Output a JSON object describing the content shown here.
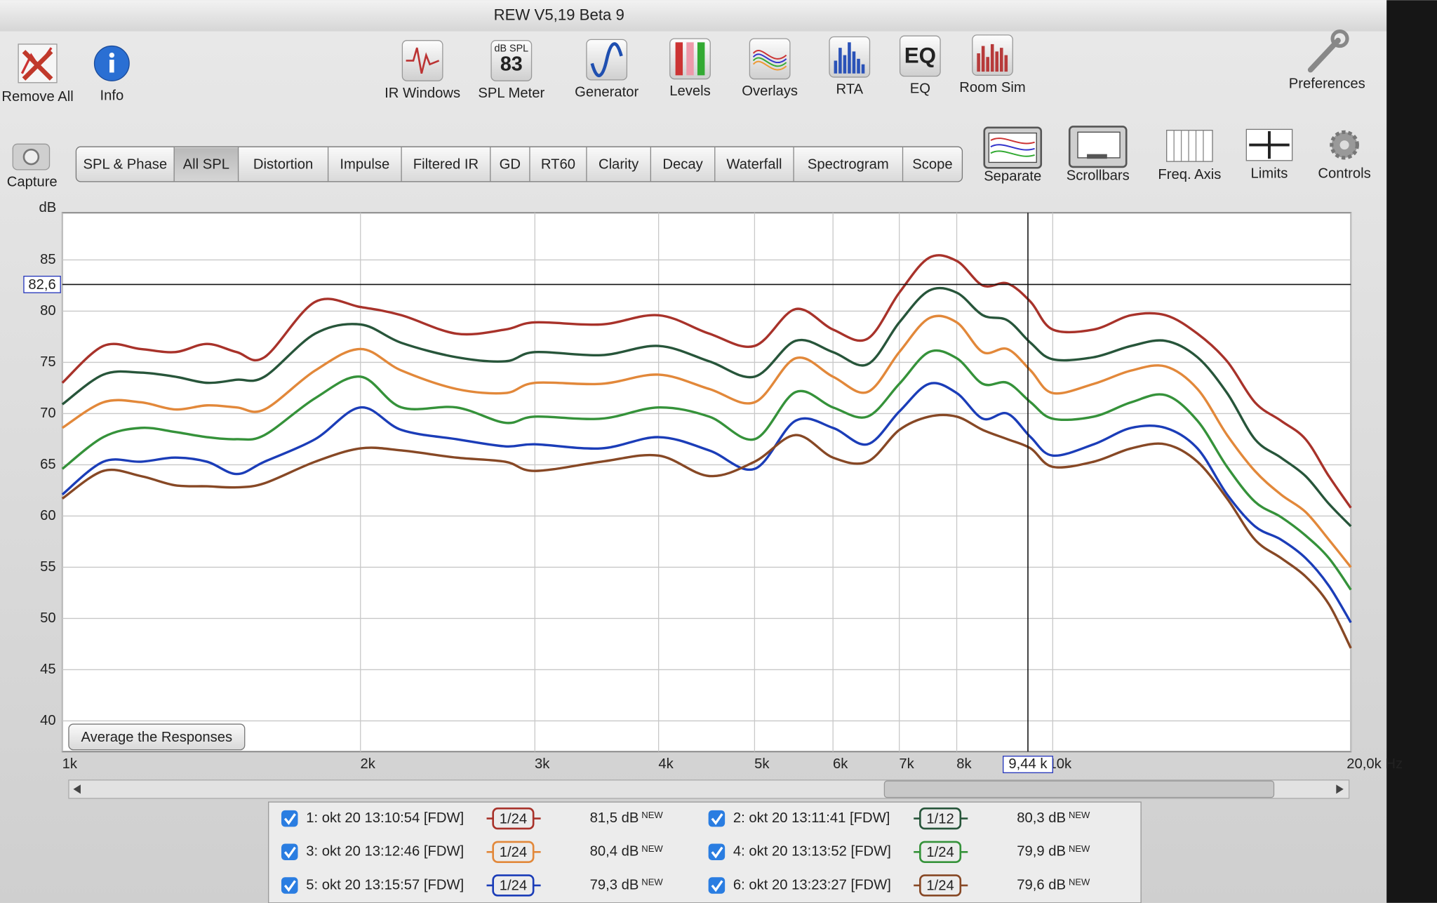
{
  "window_title": "REW V5,19 Beta 9",
  "toolbar": {
    "left": [
      "Remove All",
      "Info"
    ],
    "center": [
      "IR Windows",
      "SPL Meter",
      "Generator",
      "Levels",
      "Overlays",
      "RTA",
      "EQ",
      "Room Sim"
    ],
    "right": [
      "Preferences"
    ]
  },
  "spl_icon": {
    "label": "dB SPL",
    "value": "83"
  },
  "eq_icon": "EQ",
  "capture": "Capture",
  "tabs": [
    "SPL & Phase",
    "All SPL",
    "Distortion",
    "Impulse",
    "Filtered IR",
    "GD",
    "RT60",
    "Clarity",
    "Decay",
    "Waterfall",
    "Spectrogram",
    "Scope"
  ],
  "active_tab": 1,
  "view_buttons": [
    "Separate",
    "Scrollbars",
    "Freq. Axis",
    "Limits",
    "Controls"
  ],
  "average_button": "Average the Responses",
  "chart_data": {
    "type": "line",
    "y_label": "dB",
    "log_x": true,
    "grid": true,
    "xlim": [
      1000,
      20000
    ],
    "ylim": [
      37,
      89.6
    ],
    "xticks": [
      {
        "value": 1000,
        "label": "1k"
      },
      {
        "value": 2000,
        "label": "2k"
      },
      {
        "value": 3000,
        "label": "3k"
      },
      {
        "value": 4000,
        "label": "4k"
      },
      {
        "value": 5000,
        "label": "5k"
      },
      {
        "value": 6000,
        "label": "6k"
      },
      {
        "value": 7000,
        "label": "7k"
      },
      {
        "value": 8000,
        "label": "8k"
      },
      {
        "value": 10000,
        "label": "10k"
      },
      {
        "value": 20000,
        "label": "20,0k Hz"
      }
    ],
    "yticks": [
      40,
      45,
      50,
      55,
      60,
      65,
      70,
      75,
      80,
      85
    ],
    "cursor": {
      "x": {
        "value": 9440,
        "label": "9,44 k"
      },
      "y": {
        "value": 82.6,
        "label": "82,6"
      }
    },
    "x": [
      1000,
      1100,
      1200,
      1300,
      1400,
      1500,
      1600,
      1800,
      2000,
      2200,
      2500,
      2800,
      3000,
      3500,
      4000,
      4500,
      5000,
      5500,
      6000,
      6500,
      7000,
      7500,
      8000,
      8500,
      9000,
      9500,
      10000,
      11000,
      12000,
      13000,
      14000,
      15000,
      16000,
      17000,
      18000,
      19000,
      20000
    ],
    "series": [
      {
        "name": "1: okt 20 13:10:54 [FDW]",
        "color": "#a8322a",
        "smoothing": "1/24",
        "level": "81,5 dB",
        "tag": "NEW",
        "values": [
          73,
          76.6,
          76.3,
          76,
          76.8,
          76,
          75.5,
          80.9,
          80.4,
          79.6,
          77.8,
          78.2,
          78.9,
          78.7,
          79.6,
          77.8,
          76.6,
          80.2,
          78.2,
          77.3,
          81.8,
          85.2,
          84.9,
          82.5,
          82.7,
          80.9,
          78.2,
          78.2,
          79.6,
          79.6,
          77.8,
          75.1,
          71.1,
          69.3,
          67.5,
          63.9,
          60.8
        ]
      },
      {
        "name": "2: okt 20 13:11:41 [FDW]",
        "color": "#27553a",
        "smoothing": "1/12",
        "level": "80,3 dB",
        "tag": "NEW",
        "values": [
          70.9,
          73.8,
          74,
          73.6,
          73,
          73.3,
          73.6,
          77.8,
          78.7,
          76.9,
          75.5,
          75.1,
          76,
          75.7,
          76.6,
          75.1,
          73.6,
          77.1,
          76,
          74.8,
          78.9,
          82,
          81.8,
          79.6,
          79.1,
          76.9,
          75.3,
          75.5,
          76.6,
          77.1,
          75.5,
          72,
          67.5,
          65.7,
          63.9,
          61.2,
          59
        ]
      },
      {
        "name": "3: okt 20 13:12:46 [FDW]",
        "color": "#e2883a",
        "smoothing": "1/24",
        "level": "80,4 dB",
        "tag": "NEW",
        "values": [
          68.6,
          71.1,
          71.1,
          70.4,
          70.8,
          70.6,
          70.4,
          74.2,
          76.3,
          74.2,
          72.4,
          72,
          73,
          72.9,
          73.8,
          72.4,
          71.1,
          75.4,
          73.6,
          72.1,
          76,
          79.3,
          78.9,
          76,
          76.3,
          74.2,
          72,
          72.9,
          74.2,
          74.6,
          72.4,
          67.9,
          64.4,
          62.1,
          60.4,
          57.7,
          55
        ]
      },
      {
        "name": "4: okt 20 13:13:52 [FDW]",
        "color": "#35923a",
        "smoothing": "1/24",
        "level": "79,9 dB",
        "tag": "NEW",
        "values": [
          64.6,
          67.7,
          68.6,
          68.2,
          67.7,
          67.5,
          67.9,
          71.5,
          73.6,
          70.6,
          70.6,
          69.1,
          69.7,
          69.5,
          70.6,
          69.7,
          67.5,
          72.1,
          70.6,
          69.7,
          72.9,
          76,
          75.4,
          72.9,
          73,
          71.1,
          69.5,
          69.7,
          71.1,
          71.8,
          69.3,
          64.8,
          61.4,
          59.9,
          58.1,
          55.9,
          52.8
        ]
      },
      {
        "name": "5: okt 20 13:15:57 [FDW]",
        "color": "#1b3db8",
        "smoothing": "1/24",
        "level": "79,3 dB",
        "tag": "NEW",
        "values": [
          62.1,
          65.3,
          65.3,
          65.7,
          65.3,
          64.1,
          65.3,
          67.5,
          70.6,
          68.4,
          67.5,
          66.8,
          67,
          66.6,
          67.7,
          66.4,
          64.6,
          69.3,
          68.6,
          67,
          70.2,
          72.9,
          72,
          69.5,
          70,
          67.7,
          65.9,
          67,
          68.6,
          68.6,
          66.6,
          62.1,
          59,
          57.7,
          55.9,
          53.2,
          49.6
        ]
      },
      {
        "name": "6: okt 20 13:23:27 [FDW]",
        "color": "#874825",
        "smoothing": "1/24",
        "level": "79,6 dB",
        "tag": "NEW",
        "values": [
          61.7,
          64.4,
          63.9,
          63,
          62.9,
          62.8,
          63.2,
          65.3,
          66.6,
          66.4,
          65.7,
          65.3,
          64.4,
          65.3,
          65.9,
          63.9,
          65.3,
          67.9,
          65.7,
          65.3,
          68.4,
          69.7,
          69.7,
          68.4,
          67.5,
          66.6,
          64.8,
          65.3,
          66.6,
          67,
          65.3,
          61.7,
          57.7,
          55.9,
          54.1,
          51.4,
          47.1
        ]
      }
    ]
  }
}
